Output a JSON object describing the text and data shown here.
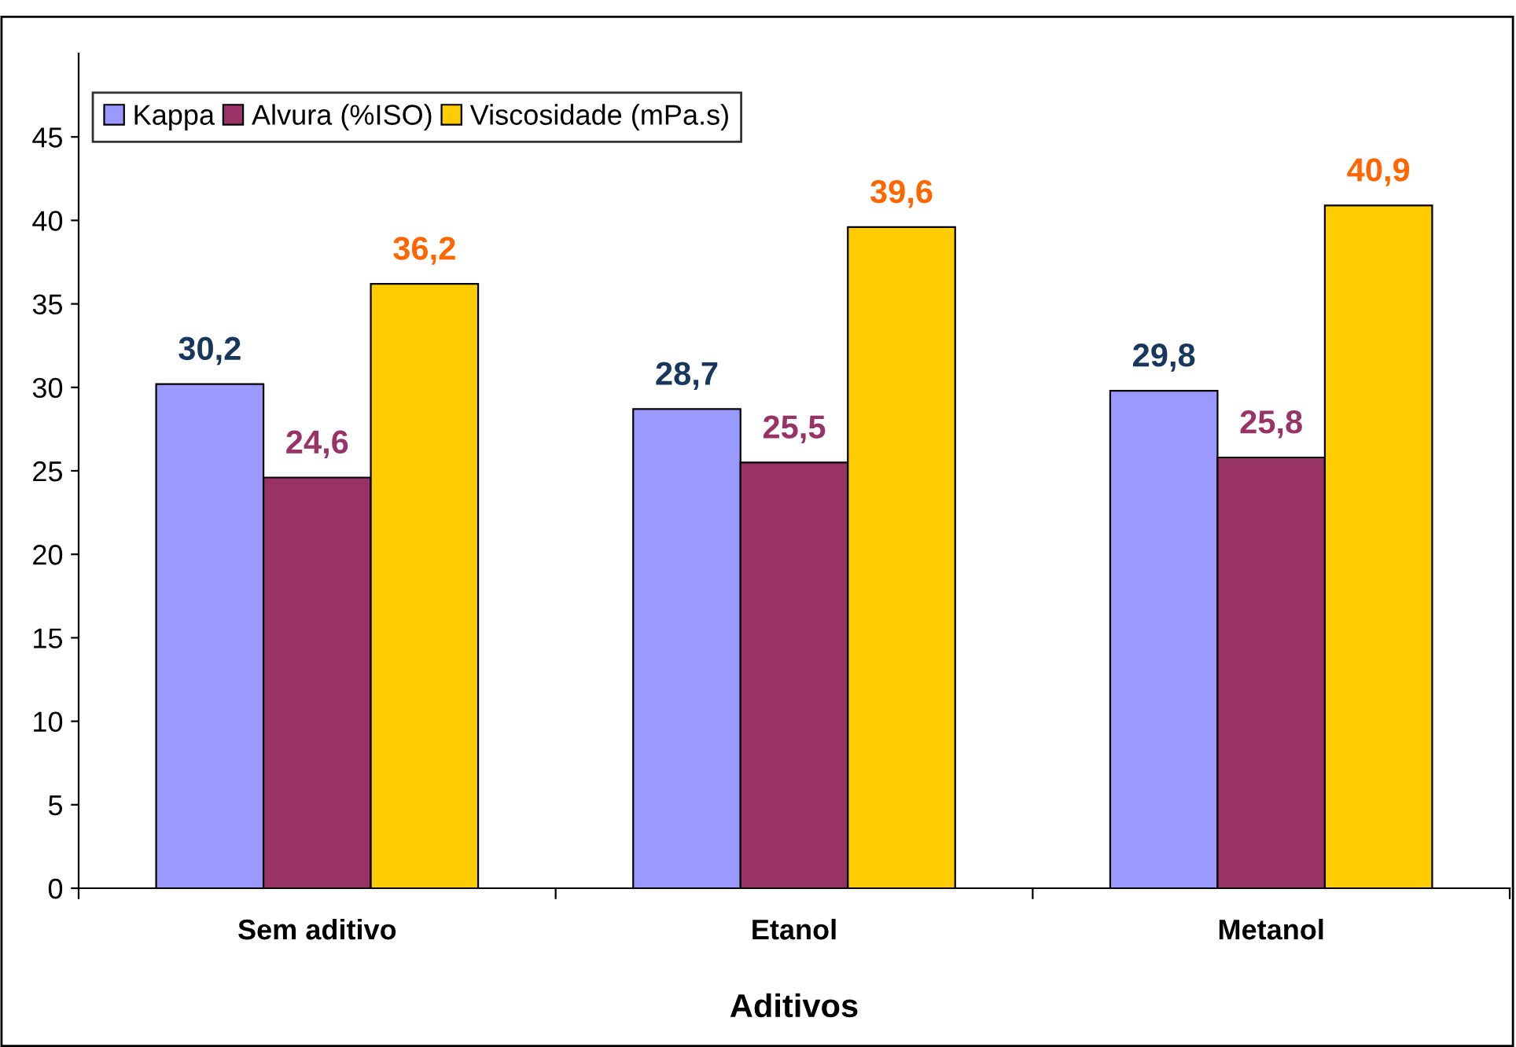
{
  "chart_data": {
    "type": "bar",
    "xlabel": "Aditivos",
    "categories": [
      "Sem aditivo",
      "Etanol",
      "Metanol"
    ],
    "series": [
      {
        "name": "Kappa",
        "color": "#9999ff",
        "values": [
          30.2,
          28.7,
          29.8
        ],
        "value_labels": [
          "30,2",
          "28,7",
          "29,8"
        ]
      },
      {
        "name": "Alvura (%ISO)",
        "color": "#993366",
        "values": [
          24.6,
          25.5,
          25.8
        ],
        "value_labels": [
          "24,6",
          "25,5",
          "25,8"
        ]
      },
      {
        "name": "Viscosidade (mPa.s)",
        "color": "#ffcc00",
        "values": [
          36.2,
          39.6,
          40.9
        ],
        "value_labels": [
          "36,2",
          "39,6",
          "40,9"
        ]
      }
    ],
    "ylim": [
      0,
      50
    ],
    "yticks": [
      0,
      5,
      10,
      15,
      20,
      25,
      30,
      35,
      40,
      45
    ],
    "grid": false,
    "legend": "top left"
  }
}
